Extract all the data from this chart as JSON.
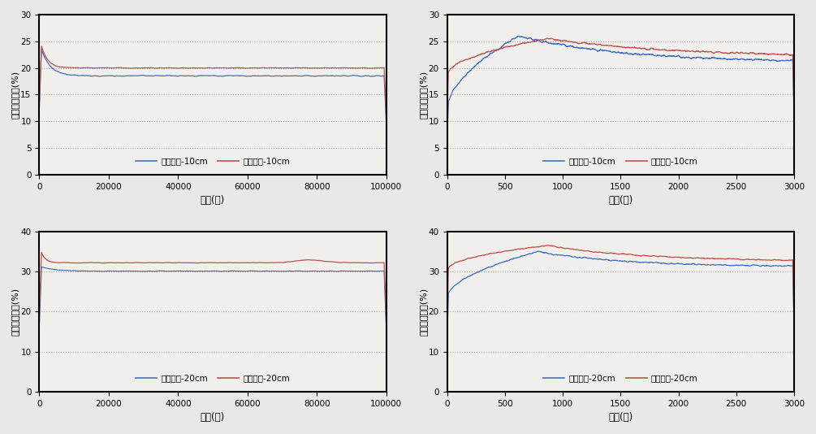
{
  "blue_color": "#4472C4",
  "red_color": "#C0504D",
  "ylabel": "토양수분함량(%)",
  "xlabel": "시간(초)",
  "grid_color": "#AAAAAA",
  "fig_bg": "#E8E8E8",
  "plot_bg": "#F0EFEB",
  "legend_10cm_blue": "연속관개-10cm",
  "legend_10cm_red": "간단관개-10cm",
  "legend_20cm_blue": "연속관개-20cm",
  "legend_20cm_red": "간단관개-20cm",
  "panels": [
    {
      "xlim": [
        0,
        100000
      ],
      "xticks": [
        0,
        20000,
        40000,
        60000,
        80000,
        100000
      ],
      "ylim": [
        0,
        30
      ],
      "yticks": [
        0,
        5,
        10,
        15,
        20,
        25,
        30
      ],
      "depth": "10cm"
    },
    {
      "xlim": [
        0,
        3000
      ],
      "xticks": [
        0,
        500,
        1000,
        1500,
        2000,
        2500,
        3000
      ],
      "ylim": [
        0,
        30
      ],
      "yticks": [
        0,
        5,
        10,
        15,
        20,
        25,
        30
      ],
      "depth": "10cm"
    },
    {
      "xlim": [
        0,
        100000
      ],
      "xticks": [
        0,
        20000,
        40000,
        60000,
        80000,
        100000
      ],
      "ylim": [
        0,
        40
      ],
      "yticks": [
        0,
        10,
        20,
        30,
        40
      ],
      "depth": "20cm"
    },
    {
      "xlim": [
        0,
        3000
      ],
      "xticks": [
        0,
        500,
        1000,
        1500,
        2000,
        2500,
        3000
      ],
      "ylim": [
        0,
        40
      ],
      "yticks": [
        0,
        10,
        20,
        30,
        40
      ],
      "depth": "20cm"
    }
  ]
}
